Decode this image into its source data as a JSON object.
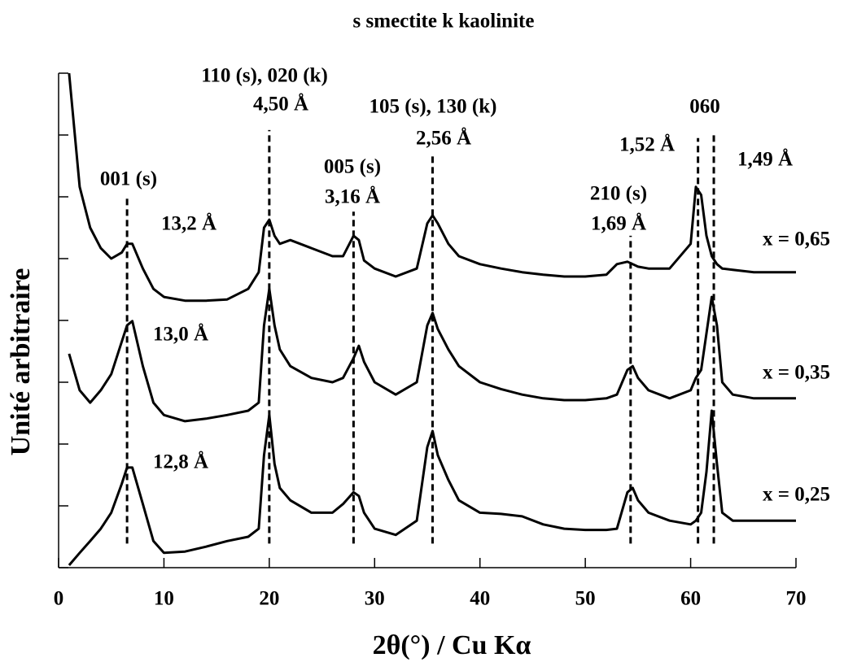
{
  "chart_data": {
    "type": "line",
    "title": "s smectite    k kaolinite",
    "xlabel": "2θ(°) / Cu Kα",
    "ylabel": "Unité arbitraire",
    "x": [
      1,
      2,
      3,
      4,
      5,
      6,
      6.5,
      7,
      8,
      9,
      10,
      12,
      14,
      16,
      18,
      19,
      19.5,
      20,
      20.5,
      21,
      22,
      24,
      26,
      27,
      28,
      28.5,
      29,
      30,
      32,
      34,
      35,
      35.5,
      36,
      37,
      38,
      40,
      42,
      44,
      46,
      48,
      50,
      52,
      53,
      54,
      54.5,
      55,
      56,
      58,
      60,
      60.5,
      61,
      61.5,
      62,
      62.5,
      63,
      64,
      66,
      68,
      70
    ],
    "series": [
      {
        "name": "x = 0,65",
        "color": "#000000",
        "values": [
          8.0,
          6.16,
          5.5,
          5.17,
          5.0,
          5.1,
          5.24,
          5.24,
          4.84,
          4.51,
          4.38,
          4.32,
          4.32,
          4.34,
          4.51,
          4.78,
          5.5,
          5.63,
          5.37,
          5.24,
          5.3,
          5.17,
          5.04,
          5.04,
          5.37,
          5.3,
          4.97,
          4.84,
          4.71,
          4.84,
          5.57,
          5.7,
          5.57,
          5.24,
          5.04,
          4.91,
          4.84,
          4.78,
          4.74,
          4.71,
          4.71,
          4.74,
          4.91,
          4.95,
          4.91,
          4.87,
          4.84,
          4.84,
          5.24,
          6.16,
          6.03,
          5.37,
          5.04,
          4.91,
          4.84,
          4.82,
          4.78,
          4.78,
          4.78
        ]
      },
      {
        "name": "x = 0,35",
        "color": "#000000",
        "values": [
          3.46,
          2.87,
          2.67,
          2.87,
          3.13,
          3.66,
          3.92,
          3.99,
          3.26,
          2.67,
          2.47,
          2.37,
          2.41,
          2.47,
          2.54,
          2.67,
          3.92,
          4.51,
          3.92,
          3.53,
          3.26,
          3.07,
          3.0,
          3.07,
          3.39,
          3.59,
          3.33,
          3.0,
          2.8,
          3.0,
          3.92,
          4.12,
          3.86,
          3.53,
          3.26,
          3.0,
          2.89,
          2.8,
          2.74,
          2.71,
          2.71,
          2.74,
          2.8,
          3.2,
          3.26,
          3.07,
          2.87,
          2.74,
          2.87,
          3.07,
          3.2,
          3.79,
          4.38,
          3.92,
          3.0,
          2.8,
          2.74,
          2.74,
          2.74
        ]
      },
      {
        "name": "x = 0,25",
        "color": "#000000",
        "values": [
          0.04,
          0.24,
          0.43,
          0.63,
          0.89,
          1.36,
          1.62,
          1.62,
          1.03,
          0.43,
          0.24,
          0.26,
          0.34,
          0.43,
          0.5,
          0.63,
          1.82,
          2.47,
          1.68,
          1.29,
          1.09,
          0.89,
          0.89,
          1.03,
          1.22,
          1.16,
          0.89,
          0.63,
          0.53,
          0.76,
          1.95,
          2.21,
          1.82,
          1.42,
          1.09,
          0.89,
          0.87,
          0.83,
          0.7,
          0.63,
          0.61,
          0.61,
          0.63,
          1.22,
          1.29,
          1.09,
          0.89,
          0.76,
          0.7,
          0.76,
          0.89,
          1.55,
          2.54,
          1.68,
          0.89,
          0.76,
          0.76,
          0.76,
          0.76
        ]
      }
    ],
    "xlim": [
      0,
      70
    ],
    "xticks": [
      0,
      10,
      20,
      30,
      40,
      50,
      60,
      70
    ],
    "ylim": [
      0,
      8
    ],
    "yticks": [
      0,
      1,
      2,
      3,
      4,
      5,
      6,
      7,
      8
    ],
    "reference_lines": [
      {
        "x": 6.5,
        "y": [
          0.39,
          6.03
        ]
      },
      {
        "x": 20,
        "y": [
          0.39,
          7.08
        ]
      },
      {
        "x": 28,
        "y": [
          0.39,
          5.76
        ]
      },
      {
        "x": 35.5,
        "y": [
          0.39,
          6.68
        ]
      },
      {
        "x": 54.3,
        "y": [
          0.39,
          5.37
        ]
      },
      {
        "x": 60.7,
        "y": [
          0.39,
          6.95
        ]
      },
      {
        "x": 62.2,
        "y": [
          0.39,
          7.01
        ]
      }
    ],
    "annotations": [
      "110 (s), 020 (k)",
      "4,50 Å",
      "105 (s), 130 (k)",
      "2,56 Å",
      "060",
      "1,52 Å",
      "1,49 Å",
      "001 (s)",
      "005 (s)",
      "3,16 Å",
      "13,2 Å",
      "210 (s)",
      "1,69 Å",
      "13,0 Å",
      "12,8 Å"
    ]
  }
}
